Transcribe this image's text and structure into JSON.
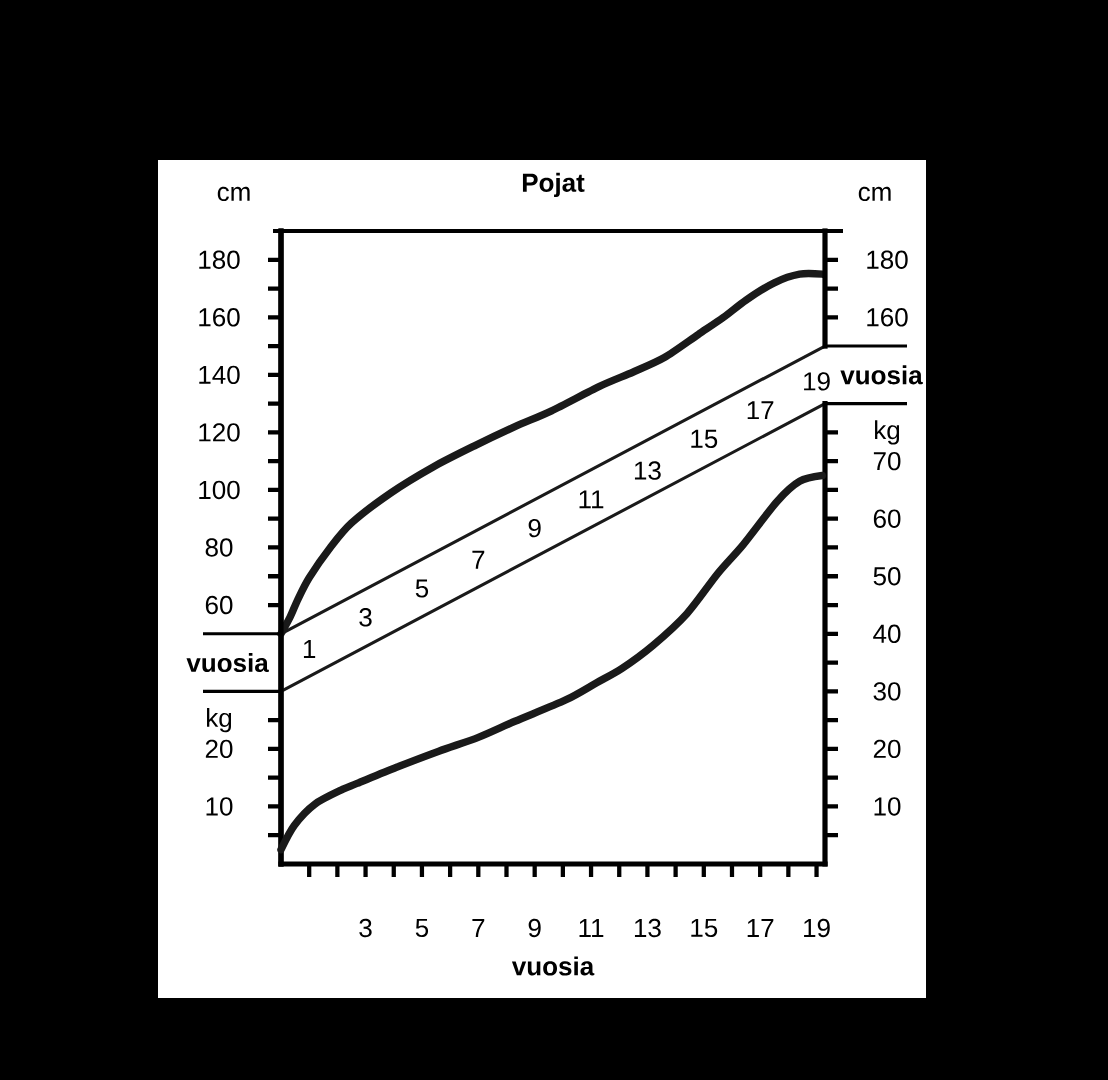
{
  "chart_data": [
    {
      "type": "line",
      "title": "Pojat",
      "ylabel": "cm",
      "y2label": "cm",
      "tick_labels": "y",
      "series": [
        {
          "color": "#1a1a1a",
          "x": [
            0,
            0.33,
            0.6,
            1,
            1.75,
            2.5,
            3.9,
            5.4,
            6.9,
            8.3,
            9.6,
            11.3,
            12.5,
            13.6,
            14.8,
            15.7,
            16.5,
            17.5,
            18.4,
            19.2
          ],
          "values": [
            50,
            56,
            62,
            69.5,
            80,
            88.5,
            99,
            108,
            115.5,
            122,
            127.5,
            136,
            141,
            146,
            154,
            160,
            166,
            172,
            175,
            175
          ]
        },
        {
          "color": "#1a1a1a",
          "x": [
            0,
            19.3
          ],
          "values": [
            50,
            150
          ]
        },
        {
          "color": "#1a1a1a",
          "x": [
            0,
            19.3
          ],
          "values": [
            30,
            130
          ]
        }
      ],
      "xlim": [
        0,
        19.3
      ],
      "ylim": [
        -30,
        190
      ],
      "yticks": [
        60,
        {
          "value": 70,
          "label": null
        },
        80,
        {
          "value": 90,
          "label": null
        },
        100,
        {
          "value": 110,
          "label": null
        },
        120,
        {
          "value": 130,
          "label": null
        },
        140,
        {
          "value": 150,
          "label": null
        },
        160,
        {
          "value": 170,
          "label": null
        },
        180
      ],
      "y2lim": [
        -30,
        190
      ],
      "y2ticks": [
        160,
        {
          "value": 170,
          "label": null
        },
        180
      ],
      "annotations": [
        "vuosia",
        "vuosia",
        {
          "text": "1",
          "x": 1,
          "y": 35
        },
        {
          "text": "3",
          "x": 3,
          "y": 46
        },
        {
          "text": "5",
          "x": 5,
          "y": 56
        },
        {
          "text": "7",
          "x": 7,
          "y": 66
        },
        {
          "text": "9",
          "x": 9,
          "y": 77
        },
        {
          "text": "11",
          "x": 11,
          "y": 87
        },
        {
          "text": "13",
          "x": 13,
          "y": 97
        },
        {
          "text": "15",
          "x": 15,
          "y": 108
        },
        {
          "text": "17",
          "x": 17,
          "y": 118
        },
        {
          "text": "19",
          "x": 19,
          "y": 128
        }
      ]
    },
    {
      "type": "line",
      "xlabel": "vuosia",
      "series": [
        {
          "color": "#1a1a1a",
          "x": [
            0,
            0.47,
            1.2,
            2.2,
            2.7,
            4.1,
            5.6,
            7,
            8.3,
            10.1,
            11.2,
            12.1,
            13.2,
            14.4,
            15.5,
            16.4,
            17.6,
            18.4,
            19.2
          ],
          "values": [
            2.5,
            6.7,
            10.4,
            13,
            14,
            16.8,
            19.6,
            22,
            24.8,
            28.5,
            31.5,
            34,
            38,
            43.5,
            50.5,
            55.5,
            63,
            66.5,
            67.5
          ]
        }
      ],
      "xlim": [
        0,
        19.3
      ],
      "xticks": [
        {
          "value": 1,
          "label": null
        },
        {
          "value": 2,
          "label": null
        },
        3,
        {
          "value": 4,
          "label": null
        },
        5,
        {
          "value": 6,
          "label": null
        },
        7,
        {
          "value": 8,
          "label": null
        },
        9,
        {
          "value": 10,
          "label": null
        },
        11,
        {
          "value": 12,
          "label": null
        },
        13,
        {
          "value": 14,
          "label": null
        },
        15,
        {
          "value": 16,
          "label": null
        },
        17,
        {
          "value": 18,
          "label": null
        },
        19
      ],
      "ylim": [
        0,
        110
      ],
      "yticks": [
        {
          "value": 5,
          "label": null
        },
        10,
        {
          "value": 15,
          "label": null
        },
        20,
        {
          "value": 25,
          "label": "kg"
        }
      ],
      "y2lim": [
        0,
        110
      ],
      "y2ticks": [
        {
          "value": 5,
          "label": null
        },
        10,
        {
          "value": 15,
          "label": null
        },
        20,
        {
          "value": 25,
          "label": null
        },
        30,
        {
          "value": 35,
          "label": null
        },
        40,
        {
          "value": 45,
          "label": null
        },
        50,
        {
          "value": 55,
          "label": null
        },
        60,
        {
          "value": 65,
          "label": null
        },
        70,
        {
          "value": 75,
          "label": "kg"
        }
      ]
    }
  ]
}
